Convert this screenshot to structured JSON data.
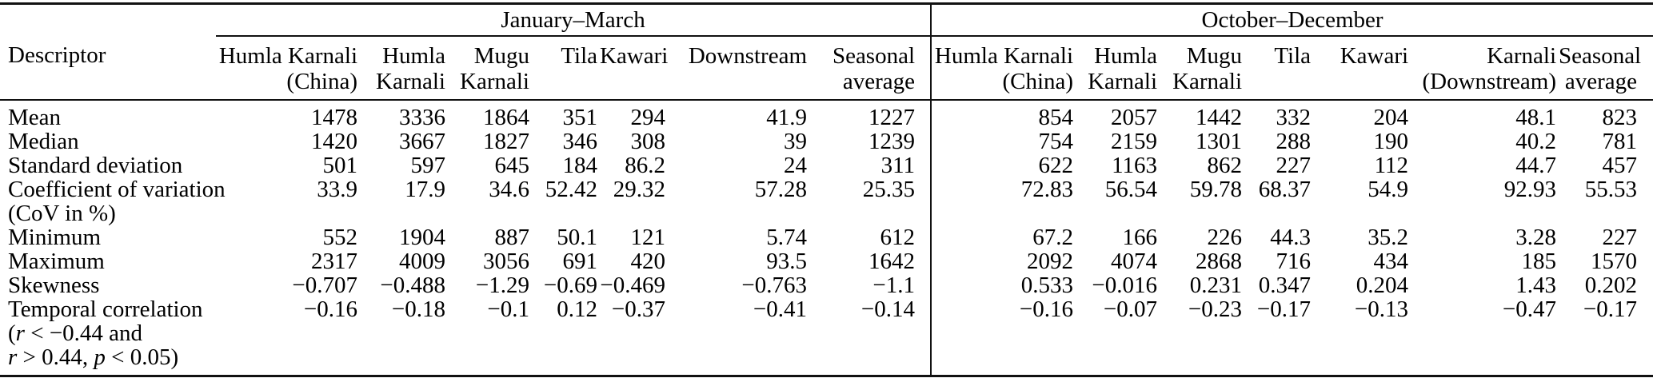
{
  "table": {
    "descriptor_header": "Descriptor",
    "season_groups": [
      {
        "label": "January–March",
        "columns": [
          [
            "Humla Karnali",
            "(China)"
          ],
          [
            "Humla",
            "Karnali"
          ],
          [
            "Mugu",
            "Karnali"
          ],
          [
            "Tila"
          ],
          [
            "Kawari"
          ],
          [
            "Downstream"
          ],
          [
            "Seasonal",
            "average"
          ]
        ]
      },
      {
        "label": "October–December",
        "columns": [
          [
            "Humla Karnali",
            "(China)"
          ],
          [
            "Humla",
            "Karnali"
          ],
          [
            "Mugu",
            "Karnali"
          ],
          [
            "Tila"
          ],
          [
            "Kawari"
          ],
          [
            "Karnali",
            "(Downstream)"
          ],
          [
            "Seasonal",
            "average"
          ]
        ]
      }
    ],
    "rows": [
      {
        "label_lines": [
          [
            {
              "t": "Mean"
            }
          ]
        ],
        "values_jm": [
          "1478",
          "3336",
          "1864",
          "351",
          "294",
          "41.9",
          "1227"
        ],
        "values_od": [
          "854",
          "2057",
          "1442",
          "332",
          "204",
          "48.1",
          "823"
        ]
      },
      {
        "label_lines": [
          [
            {
              "t": "Median"
            }
          ]
        ],
        "values_jm": [
          "1420",
          "3667",
          "1827",
          "346",
          "308",
          "39",
          "1239"
        ],
        "values_od": [
          "754",
          "2159",
          "1301",
          "288",
          "190",
          "40.2",
          "781"
        ]
      },
      {
        "label_lines": [
          [
            {
              "t": "Standard deviation"
            }
          ]
        ],
        "values_jm": [
          "501",
          "597",
          "645",
          "184",
          "86.2",
          "24",
          "311"
        ],
        "values_od": [
          "622",
          "1163",
          "862",
          "227",
          "112",
          "44.7",
          "457"
        ]
      },
      {
        "label_lines": [
          [
            {
              "t": "Coefficient of variation"
            }
          ],
          [
            {
              "t": "(CoV in %)"
            }
          ]
        ],
        "values_jm": [
          "33.9",
          "17.9",
          "34.6",
          "52.42",
          "29.32",
          "57.28",
          "25.35"
        ],
        "values_od": [
          "72.83",
          "56.54",
          "59.78",
          "68.37",
          "54.9",
          "92.93",
          "55.53"
        ]
      },
      {
        "label_lines": [
          [
            {
              "t": "Minimum"
            }
          ]
        ],
        "values_jm": [
          "552",
          "1904",
          "887",
          "50.1",
          "121",
          "5.74",
          "612"
        ],
        "values_od": [
          "67.2",
          "166",
          "226",
          "44.3",
          "35.2",
          "3.28",
          "227"
        ]
      },
      {
        "label_lines": [
          [
            {
              "t": "Maximum"
            }
          ]
        ],
        "values_jm": [
          "2317",
          "4009",
          "3056",
          "691",
          "420",
          "93.5",
          "1642"
        ],
        "values_od": [
          "2092",
          "4074",
          "2868",
          "716",
          "434",
          "185",
          "1570"
        ]
      },
      {
        "label_lines": [
          [
            {
              "t": "Skewness"
            }
          ]
        ],
        "values_jm": [
          "−0.707",
          "−0.488",
          "−1.29",
          "−0.69",
          "−0.469",
          "−0.763",
          "−1.1"
        ],
        "values_od": [
          "0.533",
          "−0.016",
          "0.231",
          "0.347",
          "0.204",
          "1.43",
          "0.202"
        ]
      },
      {
        "label_lines": [
          [
            {
              "t": "Temporal correlation"
            }
          ],
          [
            {
              "t": "("
            },
            {
              "t": "r",
              "i": true
            },
            {
              "t": " < −0.44 and"
            }
          ],
          [
            {
              "t": "r",
              "i": true
            },
            {
              "t": " > 0.44, "
            },
            {
              "t": "p",
              "i": true
            },
            {
              "t": " < 0.05)"
            }
          ]
        ],
        "values_jm": [
          "−0.16",
          "−0.18",
          "−0.1",
          "0.12",
          "−0.37",
          "−0.41",
          "−0.14"
        ],
        "values_od": [
          "−0.16",
          "−0.07",
          "−0.23",
          "−0.17",
          "−0.13",
          "−0.47",
          "−0.17"
        ]
      }
    ]
  }
}
